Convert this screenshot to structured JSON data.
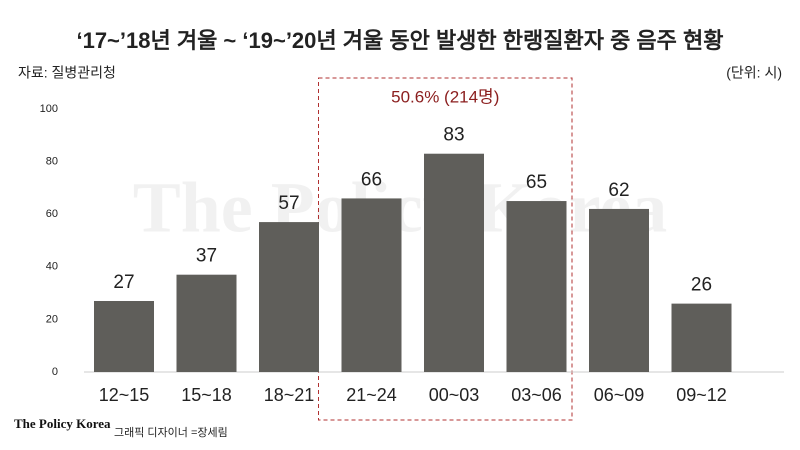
{
  "chart_data": {
    "type": "bar",
    "title": "‘17~’18년 겨울 ~ ‘19~’20년 겨울 동안 발생한 한랭질환자 중 음주 현황",
    "source": "자료: 질병관리청",
    "unit": "(단위: 시)",
    "annotation": "50.6% (214명)",
    "watermark": "The Policy Korea",
    "brand": "The Policy Korea",
    "credit": "그래픽 디자이너 =장세림",
    "categories": [
      "12~15",
      "15~18",
      "18~21",
      "21~24",
      "00~03",
      "03~06",
      "06~09",
      "09~12"
    ],
    "values": [
      27,
      37,
      57,
      66,
      83,
      65,
      62,
      26
    ],
    "color": "#5f5e5a",
    "ylim": [
      0,
      100
    ],
    "yticks": [
      0,
      20,
      40,
      60,
      80,
      100
    ],
    "grid": false
  }
}
